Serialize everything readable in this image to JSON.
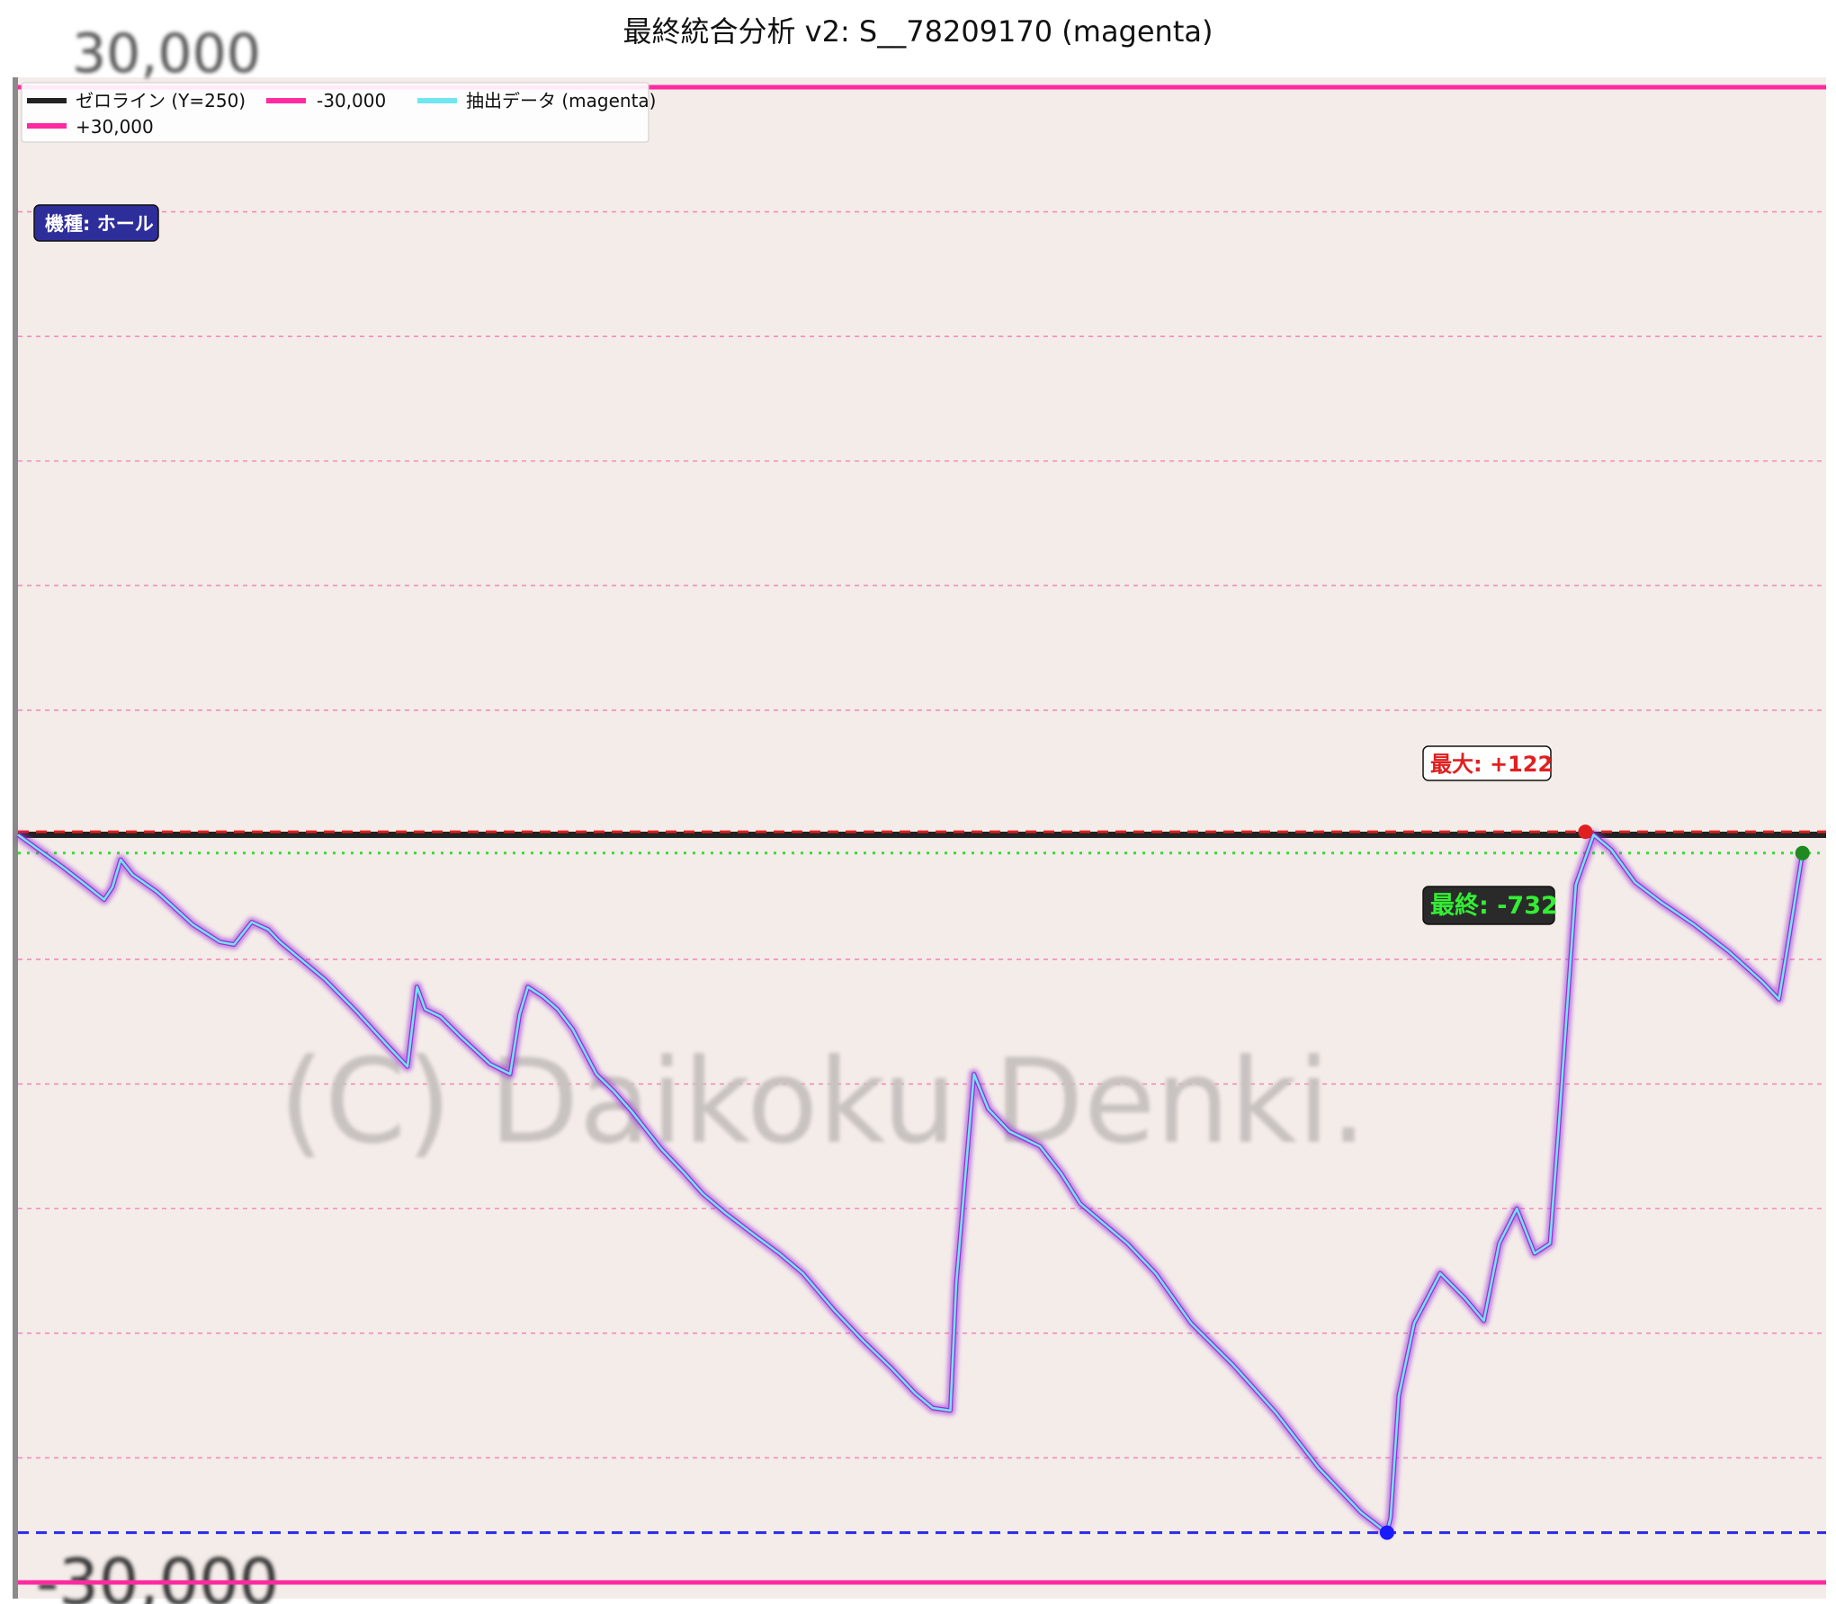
{
  "chart_title": "最終統合分析 v2: S__78209170 (magenta)",
  "chart_data": {
    "type": "line",
    "title": "最終統合分析 v2: S__78209170 (magenta)",
    "ylim": [
      -30000,
      30000
    ],
    "legend": {
      "placement": "top-left",
      "entries": [
        {
          "label": "ゼロライン (Y=250)",
          "color": "#222222"
        },
        {
          "label": "-30,000",
          "color": "#ff2aa0"
        },
        {
          "label": "抽出データ (magenta)",
          "color": "#6fe6f0"
        },
        {
          "label": "+30,000",
          "color": "#ff2aa0"
        }
      ]
    },
    "reference_lines": [
      {
        "name": "ゼロライン (Y=250)",
        "value": 0,
        "color": "#222222"
      },
      {
        "name": "+30,000",
        "value": 30000,
        "color": "#ff2aa0"
      },
      {
        "name": "-30,000",
        "value": -30000,
        "color": "#ff2aa0"
      }
    ],
    "series": [
      {
        "name": "抽出データ (magenta)",
        "color": "#6fe6f0",
        "glow_color": "#9a2fd8",
        "x": [
          0,
          38,
          57,
          73,
          80,
          87,
          97,
          118,
          148,
          171,
          183,
          198,
          212,
          222,
          260,
          287,
          314,
          330,
          338,
          345,
          358,
          375,
          400,
          417,
          425,
          432,
          445,
          457,
          470,
          490,
          505,
          520,
          545,
          565,
          580,
          600,
          625,
          645,
          665,
          692,
          716,
          740,
          760,
          775,
          790,
          795,
          810,
          822,
          840,
          866,
          884,
          900,
          920,
          940,
          964,
          994,
          1030,
          1066,
          1102,
          1138,
          1160,
          1163,
          1170,
          1183,
          1205,
          1226,
          1242,
          1255,
          1270,
          1285,
          1298,
          1305,
          1320,
          1335,
          1350,
          1370,
          1392,
          1420,
          1450,
          1478,
          1492,
          1500,
          1512
        ],
        "values": [
          0,
          -1300,
          -2000,
          -2600,
          -2100,
          -1000,
          -1600,
          -2300,
          -3600,
          -4300,
          -4400,
          -3500,
          -3800,
          -4300,
          -5800,
          -7100,
          -8500,
          -9300,
          -6100,
          -7000,
          -7300,
          -8100,
          -9200,
          -9600,
          -7200,
          -6100,
          -6500,
          -7000,
          -7800,
          -9600,
          -10300,
          -11100,
          -12600,
          -13600,
          -14400,
          -15200,
          -16100,
          -16800,
          -17600,
          -19100,
          -20300,
          -21400,
          -22400,
          -23000,
          -23100,
          -18000,
          -9600,
          -11000,
          -11900,
          -12500,
          -13600,
          -14800,
          -15600,
          -16400,
          -17600,
          -19600,
          -21300,
          -23200,
          -25400,
          -27200,
          -28000,
          -27400,
          -22500,
          -19600,
          -17600,
          -18600,
          -19500,
          -16400,
          -15000,
          -16800,
          -16400,
          -12000,
          -2000,
          0,
          -600,
          -1900,
          -2700,
          -3600,
          -4700,
          -5900,
          -6600,
          -4300,
          -732
        ]
      }
    ],
    "markers": [
      {
        "name": "max",
        "label": "最大: +122",
        "x": 1328,
        "y": 122,
        "color": "#e02020"
      },
      {
        "name": "min",
        "x": 1160,
        "y": -28000,
        "color": "#1a1aff"
      },
      {
        "name": "final",
        "label": "最終: -732",
        "x": 1512,
        "y": -732,
        "color": "#1f8a1f"
      }
    ],
    "guide_lines": [
      {
        "name": "max-line",
        "value": 122,
        "color": "#e02020",
        "style": "dashed"
      },
      {
        "name": "final-line",
        "value": -732,
        "color": "#33dd33",
        "style": "dotted"
      },
      {
        "name": "min-line",
        "value": -28000,
        "color": "#2a2aee",
        "style": "dashed"
      }
    ],
    "grid": true
  },
  "info_badge": "機種: ホール",
  "watermark": "(C) Daikoku Denki.",
  "background_labels": {
    "top": "30,000",
    "bottom": "-30,000"
  },
  "colors": {
    "plot_bg": "#f4ece9",
    "pink": "#ff2aa0",
    "badge_bg": "#2e2e9a",
    "dark_badge_bg": "#2a2a2a"
  }
}
